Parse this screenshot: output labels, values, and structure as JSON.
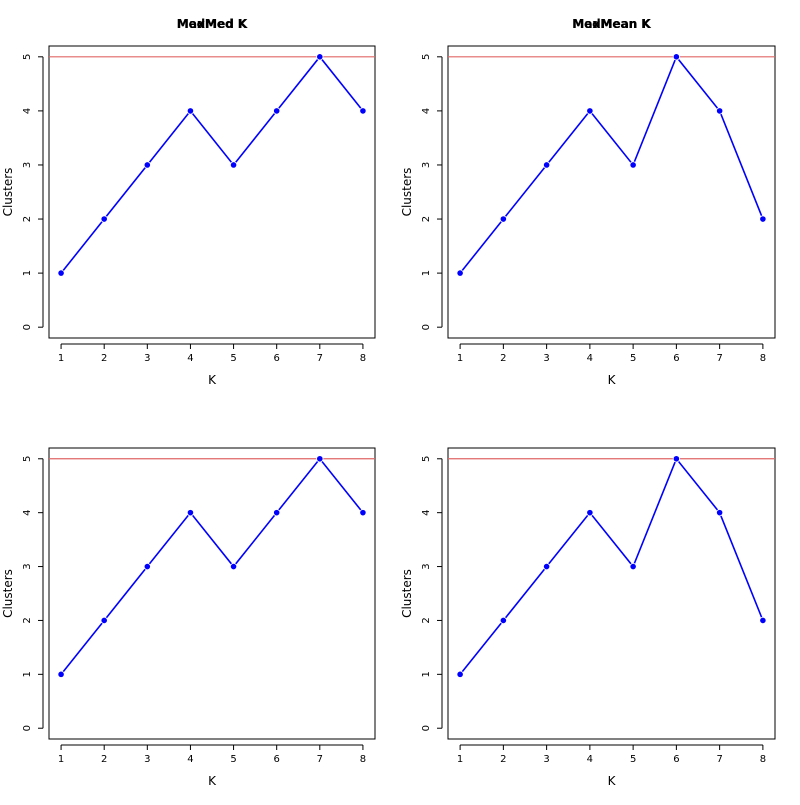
{
  "chart_data": [
    {
      "type": "line",
      "title": "MedMed K",
      "xlabel": "K",
      "ylabel": "Clusters",
      "x": [
        1,
        2,
        3,
        4,
        5,
        6,
        7,
        8
      ],
      "series": [
        {
          "values": [
            1,
            2,
            3,
            4,
            3,
            4,
            5,
            4
          ]
        }
      ],
      "reference_line": {
        "y": 5,
        "color": "#e06666"
      },
      "xticks": [
        "1",
        "2",
        "3",
        "4",
        "5",
        "6",
        "7",
        "8"
      ],
      "yticks": [
        "0",
        "1",
        "2",
        "3",
        "4",
        "5"
      ],
      "xlim": [
        1,
        8
      ],
      "ylim": [
        0,
        5
      ],
      "grid": false,
      "line_color": "#0000ff",
      "point_color": "#0000ff"
    },
    {
      "type": "line",
      "title": "MedMean K",
      "xlabel": "K",
      "ylabel": "Clusters",
      "x": [
        1,
        2,
        3,
        4,
        5,
        6,
        7,
        8
      ],
      "series": [
        {
          "values": [
            1,
            2,
            3,
            4,
            3,
            5,
            4,
            2
          ]
        }
      ],
      "reference_line": {
        "y": 5,
        "color": "#e06666"
      },
      "xticks": [
        "1",
        "2",
        "3",
        "4",
        "5",
        "6",
        "7",
        "8"
      ],
      "yticks": [
        "0",
        "1",
        "2",
        "3",
        "4",
        "5"
      ],
      "xlim": [
        1,
        8
      ],
      "ylim": [
        0,
        5
      ],
      "grid": false,
      "line_color": "#0000ff",
      "point_color": "#0000ff"
    },
    {
      "type": "line",
      "title": "MaxMed K",
      "xlabel": "K",
      "ylabel": "Clusters",
      "x": [
        1,
        2,
        3,
        4,
        5,
        6,
        7,
        8
      ],
      "series": [
        {
          "values": [
            1,
            2,
            3,
            4,
            3,
            4,
            5,
            4
          ]
        }
      ],
      "reference_line": {
        "y": 5,
        "color": "#e06666"
      },
      "xticks": [
        "1",
        "2",
        "3",
        "4",
        "5",
        "6",
        "7",
        "8"
      ],
      "yticks": [
        "0",
        "1",
        "2",
        "3",
        "4",
        "5"
      ],
      "xlim": [
        1,
        8
      ],
      "ylim": [
        0,
        5
      ],
      "grid": false,
      "line_color": "#0000ff",
      "point_color": "#0000ff"
    },
    {
      "type": "line",
      "title": "MaxMean K",
      "xlabel": "K",
      "ylabel": "Clusters",
      "x": [
        1,
        2,
        3,
        4,
        5,
        6,
        7,
        8
      ],
      "series": [
        {
          "values": [
            1,
            2,
            3,
            4,
            3,
            5,
            4,
            2
          ]
        }
      ],
      "reference_line": {
        "y": 5,
        "color": "#e06666"
      },
      "xticks": [
        "1",
        "2",
        "3",
        "4",
        "5",
        "6",
        "7",
        "8"
      ],
      "yticks": [
        "0",
        "1",
        "2",
        "3",
        "4",
        "5"
      ],
      "xlim": [
        1,
        8
      ],
      "ylim": [
        0,
        5
      ],
      "grid": false,
      "line_color": "#0000ff",
      "point_color": "#0000ff"
    }
  ]
}
